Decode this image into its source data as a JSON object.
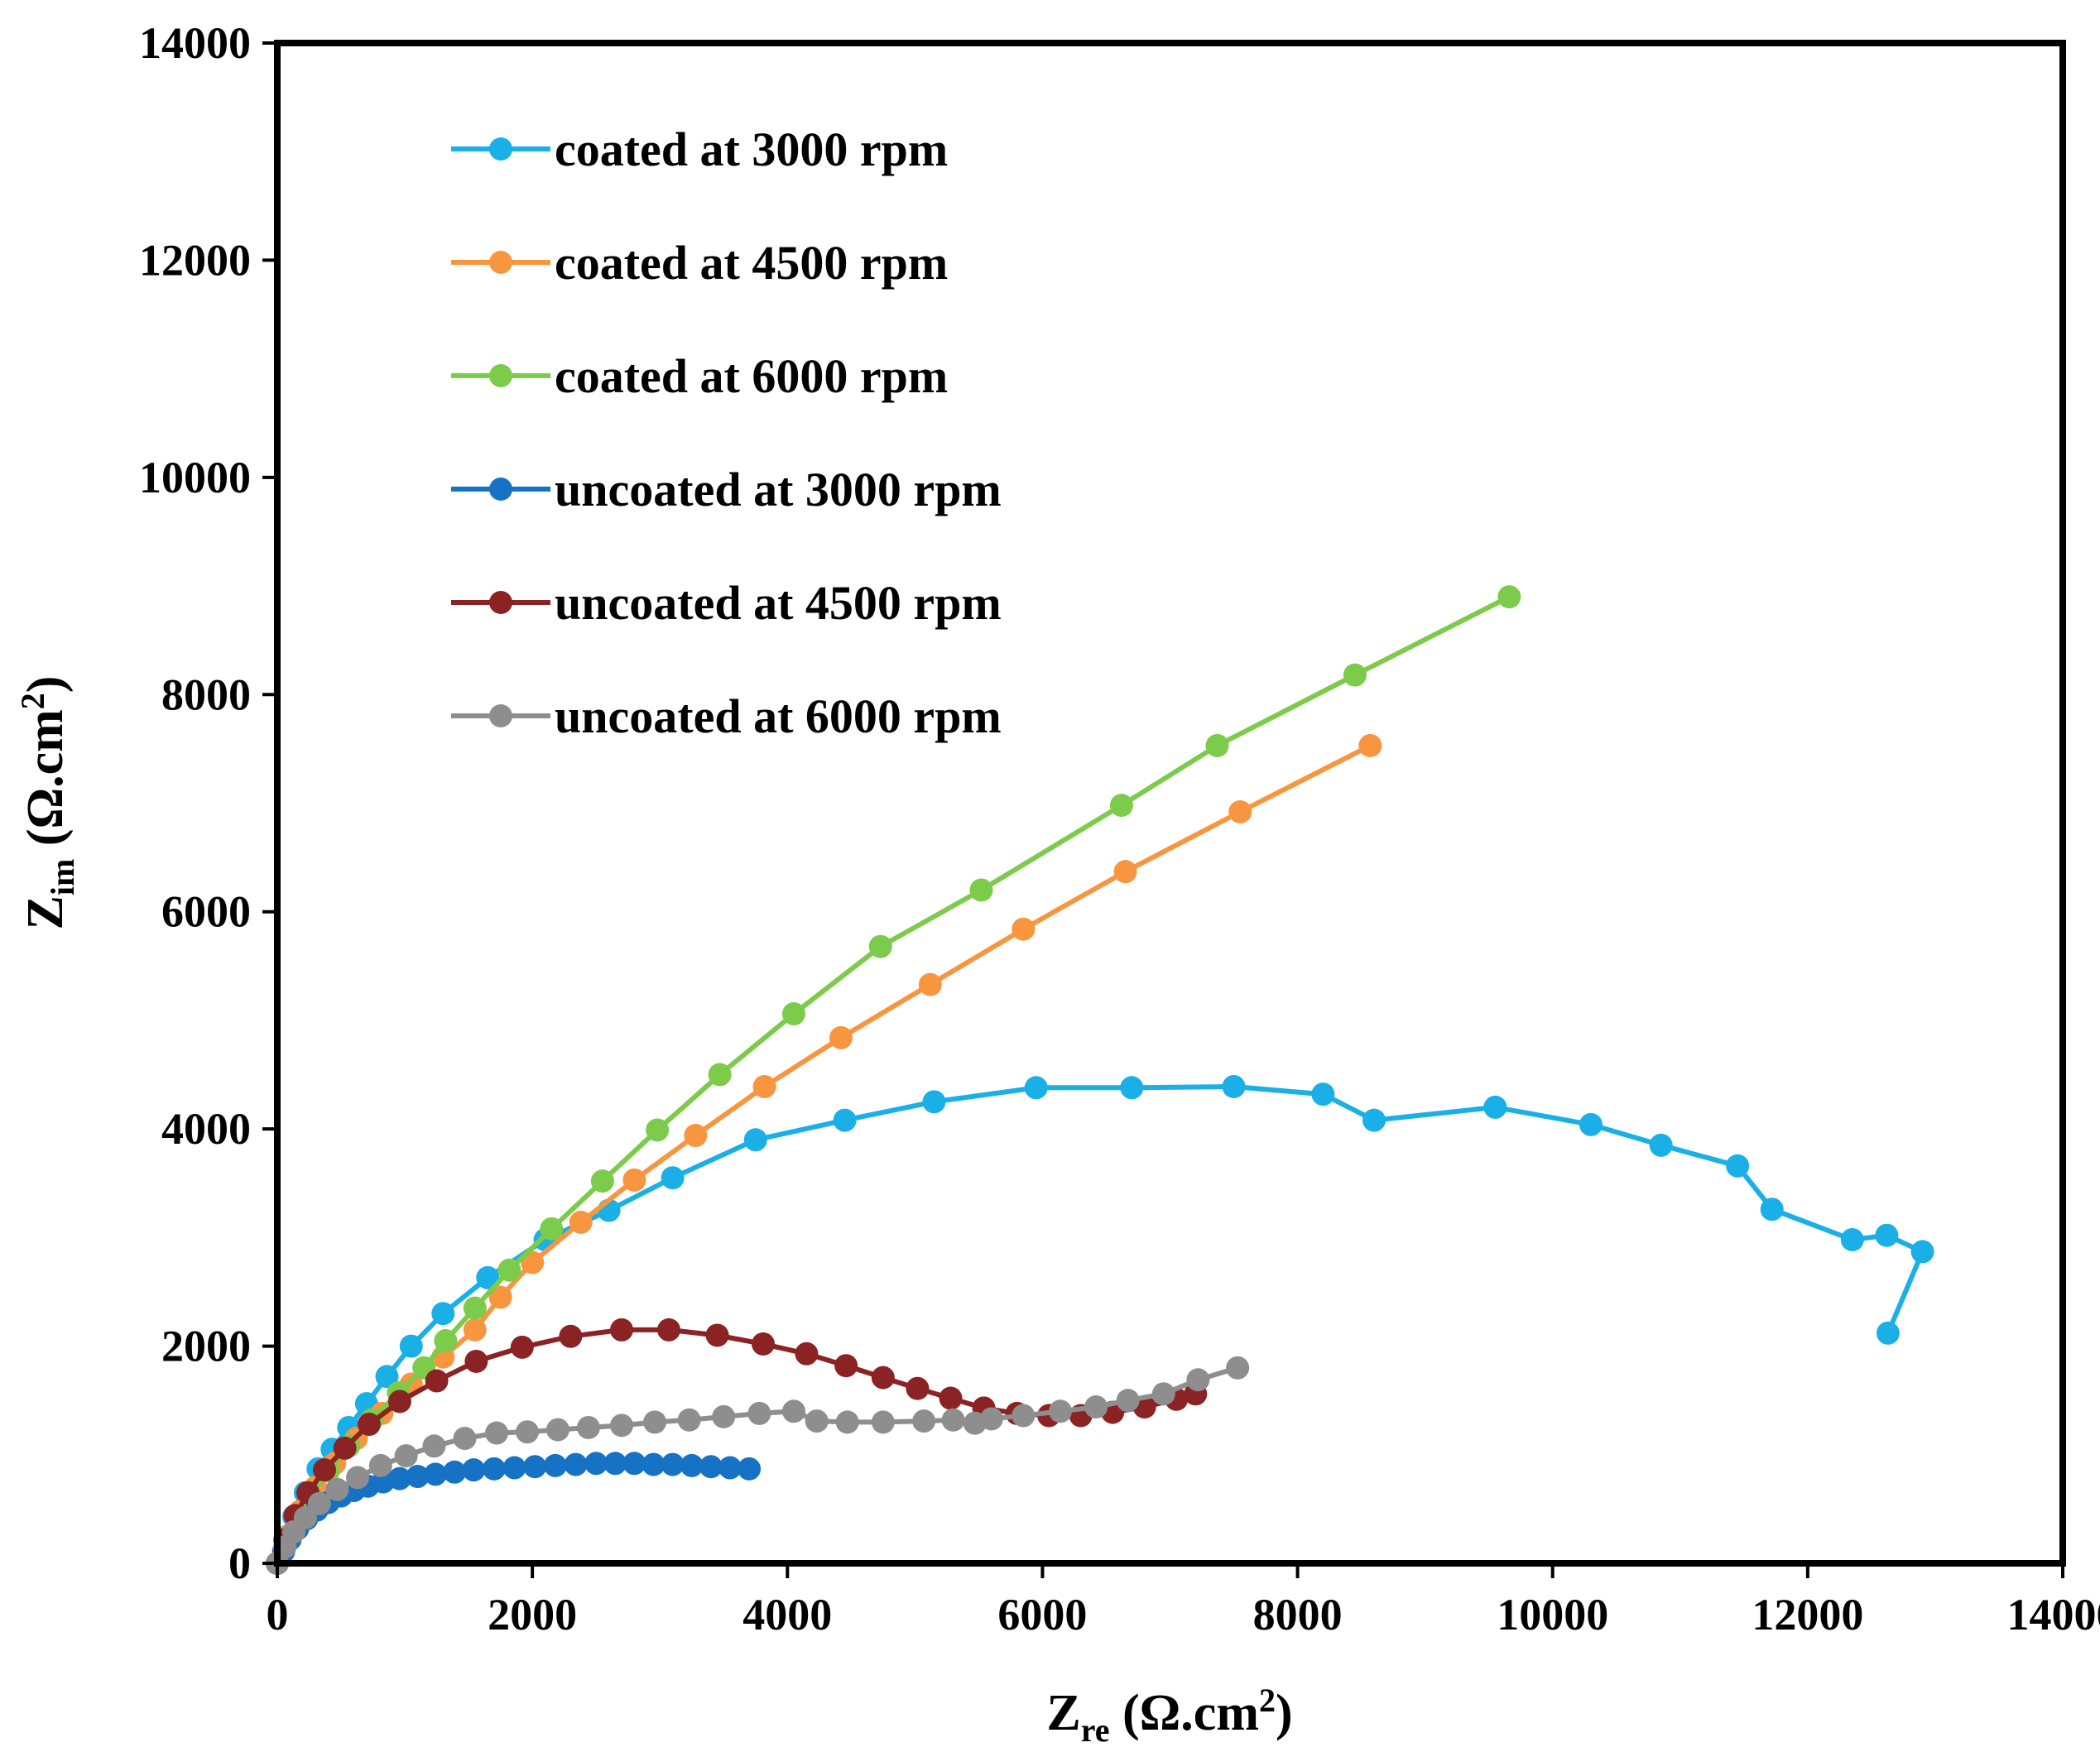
{
  "chart_data": {
    "type": "scatter",
    "title": "",
    "xlabel": {
      "main": "Z",
      "sub": "re",
      "unit_open": " (Ω.cm",
      "sup": "2",
      "unit_close": ")"
    },
    "ylabel": {
      "main": "Z",
      "sub": "im",
      "unit_open": " (Ω.cm",
      "sup": "2",
      "unit_close": ")"
    },
    "xlim": [
      0,
      14000
    ],
    "ylim": [
      0,
      14000
    ],
    "xticks": [
      0,
      2000,
      4000,
      6000,
      8000,
      10000,
      12000,
      14000
    ],
    "yticks": [
      0,
      2000,
      4000,
      6000,
      8000,
      10000,
      12000,
      14000
    ],
    "xtick_labels": [
      "0",
      "2000",
      "4000",
      "6000",
      "8000",
      "10000",
      "12000",
      "14000"
    ],
    "ytick_labels": [
      "0",
      "2000",
      "4000",
      "6000",
      "8000",
      "10000",
      "12000",
      "14000"
    ],
    "grid": false,
    "legend_position": "top-left",
    "series": [
      {
        "name": "coated at 3000 rpm",
        "color": "#1AAFE6",
        "x": [
          0,
          60,
          130,
          220,
          320,
          430,
          560,
          700,
          860,
          1050,
          1300,
          1650,
          2100,
          2600,
          3100,
          3750,
          4450,
          5150,
          5950,
          6700,
          7500,
          8200,
          8600,
          9550,
          10300,
          10850,
          11450,
          11720,
          12350,
          12620,
          12900,
          12630
        ],
        "y": [
          0,
          200,
          430,
          650,
          870,
          1050,
          1250,
          1470,
          1720,
          2000,
          2300,
          2630,
          2980,
          3250,
          3550,
          3900,
          4080,
          4250,
          4380,
          4380,
          4390,
          4320,
          4080,
          4200,
          4040,
          3850,
          3660,
          3260,
          2980,
          3020,
          2870,
          2120
        ]
      },
      {
        "name": "coated at 4500 rpm",
        "color": "#F7963F",
        "x": [
          0,
          80,
          180,
          300,
          450,
          620,
          820,
          1050,
          1300,
          1550,
          1750,
          2000,
          2380,
          2800,
          3280,
          3820,
          4420,
          5120,
          5850,
          6650,
          7550,
          8570
        ],
        "y": [
          0,
          250,
          480,
          700,
          920,
          1150,
          1380,
          1650,
          1900,
          2150,
          2450,
          2770,
          3140,
          3530,
          3940,
          4390,
          4840,
          5330,
          5840,
          6370,
          6920,
          7530
        ]
      },
      {
        "name": "coated at 6000 rpm",
        "color": "#7DCB4A",
        "x": [
          0,
          70,
          150,
          260,
          400,
          560,
          740,
          950,
          1150,
          1320,
          1550,
          1820,
          2150,
          2550,
          2980,
          3470,
          4050,
          4730,
          5520,
          6620,
          7370,
          8450,
          9660
        ],
        "y": [
          0,
          200,
          400,
          620,
          850,
          1080,
          1320,
          1570,
          1800,
          2050,
          2350,
          2700,
          3080,
          3520,
          3990,
          4500,
          5060,
          5680,
          6200,
          6980,
          7530,
          8180,
          8900
        ]
      },
      {
        "name": "uncoated at 3000 rpm",
        "color": "#1572C4",
        "x": [
          0,
          50,
          100,
          160,
          230,
          310,
          400,
          500,
          600,
          710,
          830,
          960,
          1100,
          1240,
          1390,
          1540,
          1700,
          1860,
          2020,
          2180,
          2340,
          2500,
          2650,
          2800,
          2950,
          3100,
          3250,
          3400,
          3550,
          3700
        ],
        "y": [
          0,
          110,
          220,
          320,
          410,
          490,
          560,
          620,
          670,
          710,
          750,
          780,
          800,
          820,
          840,
          860,
          870,
          880,
          890,
          900,
          910,
          920,
          920,
          920,
          910,
          910,
          900,
          890,
          880,
          870
        ]
      },
      {
        "name": "uncoated at 4500 rpm",
        "color": "#8B2324",
        "x": [
          0,
          60,
          140,
          240,
          370,
          530,
          720,
          960,
          1250,
          1560,
          1920,
          2300,
          2700,
          3070,
          3450,
          3810,
          4150,
          4460,
          4750,
          5020,
          5280,
          5540,
          5800,
          6050,
          6300,
          6550,
          6800,
          7050,
          7200
        ],
        "y": [
          0,
          220,
          440,
          650,
          860,
          1060,
          1280,
          1490,
          1680,
          1860,
          1990,
          2090,
          2150,
          2150,
          2100,
          2020,
          1930,
          1820,
          1710,
          1610,
          1520,
          1430,
          1380,
          1360,
          1360,
          1390,
          1440,
          1510,
          1560
        ]
      },
      {
        "name": "uncoated at 6000 rpm",
        "color": "#8E8E8E",
        "x": [
          0,
          60,
          130,
          220,
          330,
          470,
          630,
          810,
          1010,
          1230,
          1470,
          1720,
          1960,
          2200,
          2440,
          2700,
          2960,
          3230,
          3500,
          3780,
          4050,
          4230,
          4470,
          4750,
          5070,
          5300,
          5470,
          5600,
          5850,
          6140,
          6420,
          6670,
          6950,
          7220,
          7530
        ],
        "y": [
          0,
          150,
          290,
          420,
          550,
          680,
          790,
          900,
          990,
          1080,
          1150,
          1200,
          1210,
          1230,
          1250,
          1270,
          1300,
          1320,
          1350,
          1380,
          1400,
          1310,
          1300,
          1300,
          1310,
          1320,
          1290,
          1330,
          1360,
          1400,
          1440,
          1500,
          1560,
          1690,
          1800
        ]
      }
    ]
  }
}
